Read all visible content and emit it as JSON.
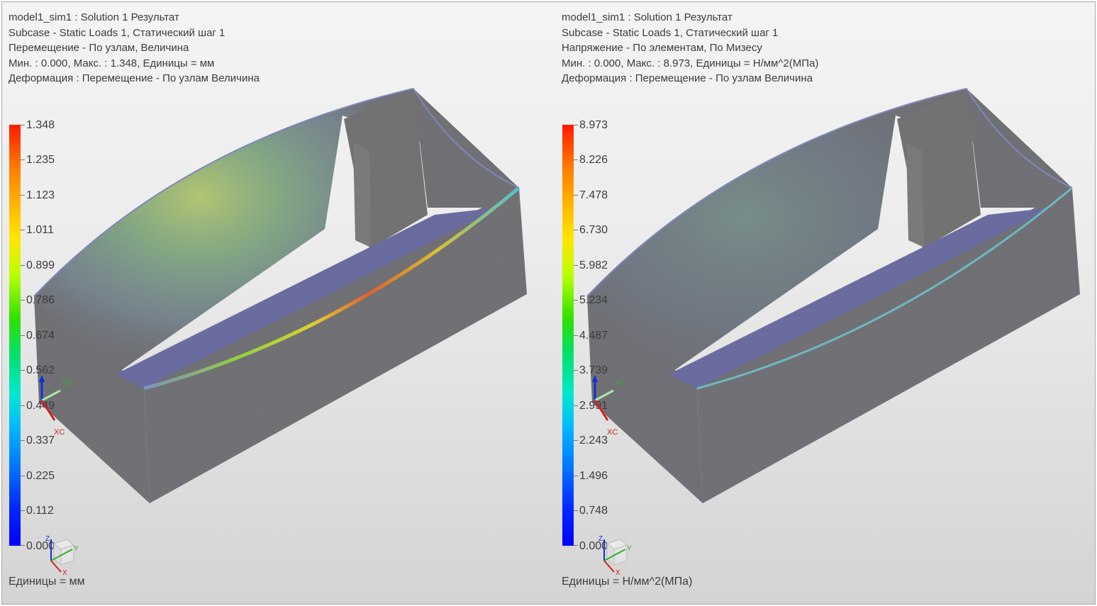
{
  "views": [
    {
      "info": [
        "model1_sim1 : Solution 1 Результат",
        "Subcase - Static Loads 1, Статический шаг 1",
        "Перемещение - По узлам, Величина",
        "Мин. : 0.000, Макс. : 1.348, Единицы = мм",
        "Деформация : Перемещение - По узлам Величина"
      ],
      "legend": [
        "1.348",
        "1.235",
        "1.123",
        "1.011",
        "0.899",
        "0.786",
        "0.674",
        "0.562",
        "0.449",
        "0.337",
        "0.225",
        "0.112",
        "0.000"
      ],
      "units": "Единицы = мм"
    },
    {
      "info": [
        "model1_sim1 : Solution 1 Результат",
        "Subcase - Static Loads 1, Статический шаг 1",
        "Напряжение - По элементам, По Мизесу",
        "Мин. : 0.000, Макс. : 8.973, Единицы = Н/мм^2(МПа)",
        "Деформация : Перемещение - По узлам Величина"
      ],
      "legend": [
        "8.973",
        "8.226",
        "7.478",
        "6.730",
        "5.982",
        "5.234",
        "4.487",
        "3.739",
        "2.991",
        "2.243",
        "1.496",
        "0.748",
        "0.000"
      ],
      "units": "Единицы = Н/мм^2(МПа)"
    }
  ],
  "triad": {
    "x_label": "XC",
    "y_label": "YC"
  },
  "wcs": {
    "x_label": "X",
    "y_label": "Y",
    "z_label": "Z"
  },
  "colors": {
    "mesh_face": "#6d6d6d",
    "mesh_floor": "#6a6ca0",
    "text": "#3c3c3c"
  }
}
